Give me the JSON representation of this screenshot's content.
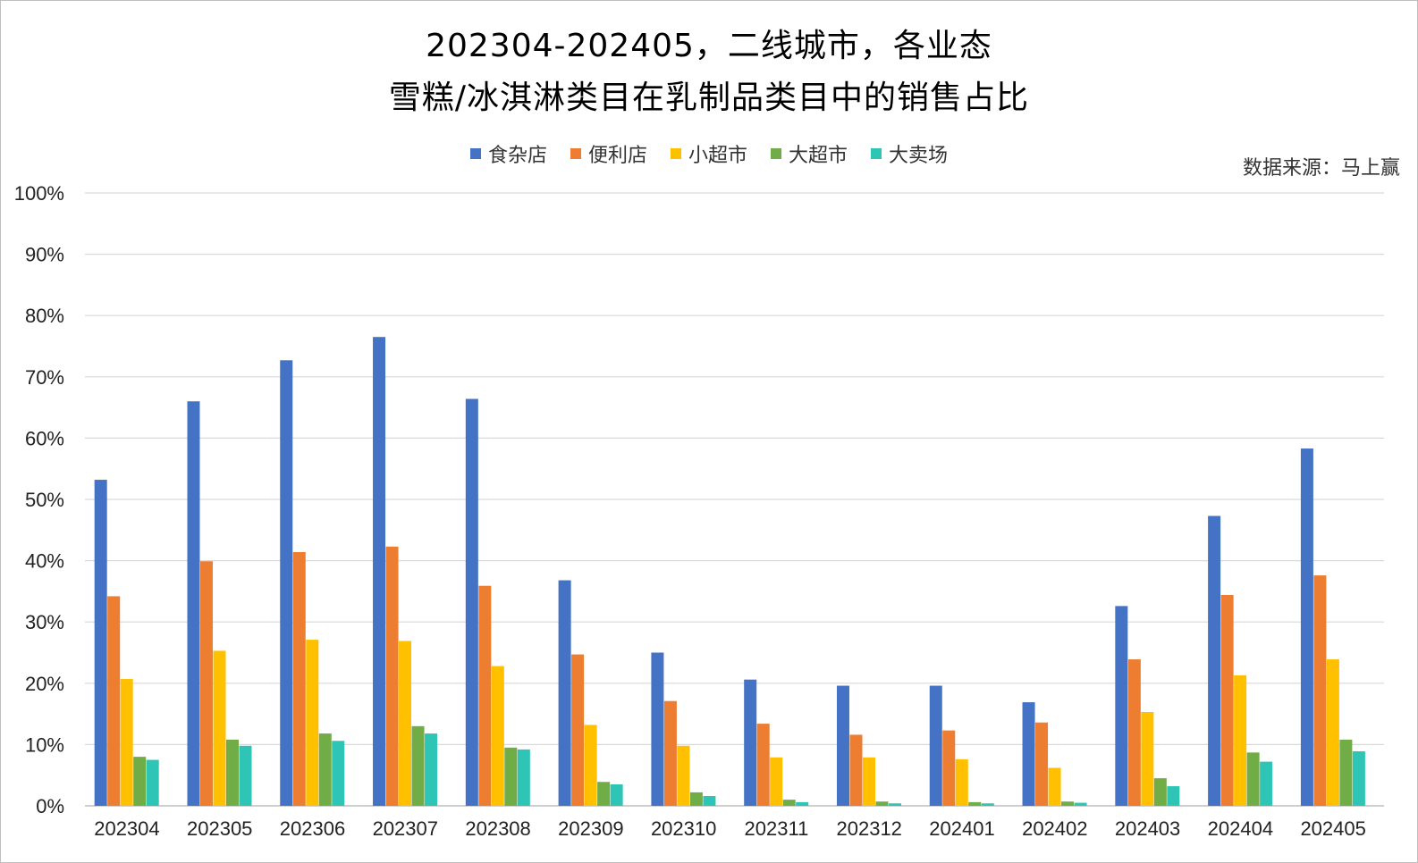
{
  "chart_data": {
    "type": "bar",
    "title_lines": [
      "202304-202405，二线城市，各业态",
      "雪糕/冰淇淋类目在乳制品类目中的销售占比"
    ],
    "source": "数据来源：马上赢",
    "categories": [
      "202304",
      "202305",
      "202306",
      "202307",
      "202308",
      "202309",
      "202310",
      "202311",
      "202312",
      "202401",
      "202402",
      "202403",
      "202404",
      "202405"
    ],
    "series": [
      {
        "name": "食杂店",
        "color": "#4472c4",
        "values": [
          53.2,
          66.0,
          72.7,
          76.5,
          66.4,
          36.8,
          25.0,
          20.6,
          19.6,
          19.6,
          16.9,
          32.6,
          47.3,
          58.3
        ]
      },
      {
        "name": "便利店",
        "color": "#ed7d31",
        "values": [
          34.2,
          39.9,
          41.4,
          42.3,
          35.9,
          24.7,
          17.1,
          13.4,
          11.6,
          12.3,
          13.6,
          23.9,
          34.4,
          37.6
        ]
      },
      {
        "name": "小超市",
        "color": "#ffc000",
        "values": [
          20.7,
          25.3,
          27.1,
          26.9,
          22.8,
          13.2,
          9.8,
          7.9,
          7.9,
          7.6,
          6.2,
          15.3,
          21.3,
          23.9
        ]
      },
      {
        "name": "大超市",
        "color": "#70ad47",
        "values": [
          8.0,
          10.8,
          11.8,
          13.0,
          9.5,
          3.9,
          2.2,
          1.0,
          0.7,
          0.6,
          0.7,
          4.5,
          8.7,
          10.8
        ]
      },
      {
        "name": "大卖场",
        "color": "#2ec4b6",
        "values": [
          7.5,
          9.8,
          10.6,
          11.8,
          9.2,
          3.5,
          1.6,
          0.6,
          0.4,
          0.4,
          0.5,
          3.2,
          7.2,
          8.9
        ]
      }
    ],
    "yticks": [
      "0%",
      "10%",
      "20%",
      "30%",
      "40%",
      "50%",
      "60%",
      "70%",
      "80%",
      "90%",
      "100%"
    ],
    "ylim": [
      0,
      100
    ],
    "grid": true,
    "legend_position": "top"
  }
}
